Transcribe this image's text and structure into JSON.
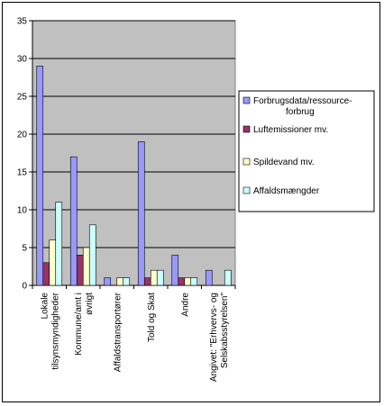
{
  "chart_data": {
    "type": "bar",
    "title": "",
    "xlabel": "",
    "ylabel": "",
    "ylim": [
      0,
      35
    ],
    "yticks": [
      0,
      5,
      10,
      15,
      20,
      25,
      30,
      35
    ],
    "grid": true,
    "legend_position": "right",
    "plot_background": "#c0c0c0",
    "categories": [
      [
        "Lokale",
        "tilsynsmyndigheder"
      ],
      [
        "Kommune/amt i",
        "øvrigt"
      ],
      [
        "Affaldstransportører"
      ],
      [
        "Told og Skat"
      ],
      [
        "Andre"
      ],
      [
        "Angivet: \"Erhvervs- og",
        "Selskabsstyrelsen\""
      ]
    ],
    "series": [
      {
        "name": "Forbrugsdata/ressource-forbrug",
        "legend_lines": [
          "Forbrugsdata/ressource-",
          "forbrug"
        ],
        "color": "#9999ff",
        "values": [
          29,
          17,
          1,
          19,
          4,
          2
        ]
      },
      {
        "name": "Luftemissioner mv.",
        "legend_lines": [
          "Luftemissioner mv."
        ],
        "color": "#993366",
        "values": [
          3,
          4,
          0,
          1,
          1,
          0
        ]
      },
      {
        "name": "Spildevand mv.",
        "legend_lines": [
          "Spildevand mv."
        ],
        "color": "#ffffcc",
        "values": [
          6,
          5,
          1,
          2,
          1,
          0
        ]
      },
      {
        "name": "Affaldsmængder",
        "legend_lines": [
          "Affaldsmængder"
        ],
        "color": "#ccffff",
        "values": [
          11,
          8,
          1,
          2,
          1,
          2
        ]
      }
    ]
  }
}
